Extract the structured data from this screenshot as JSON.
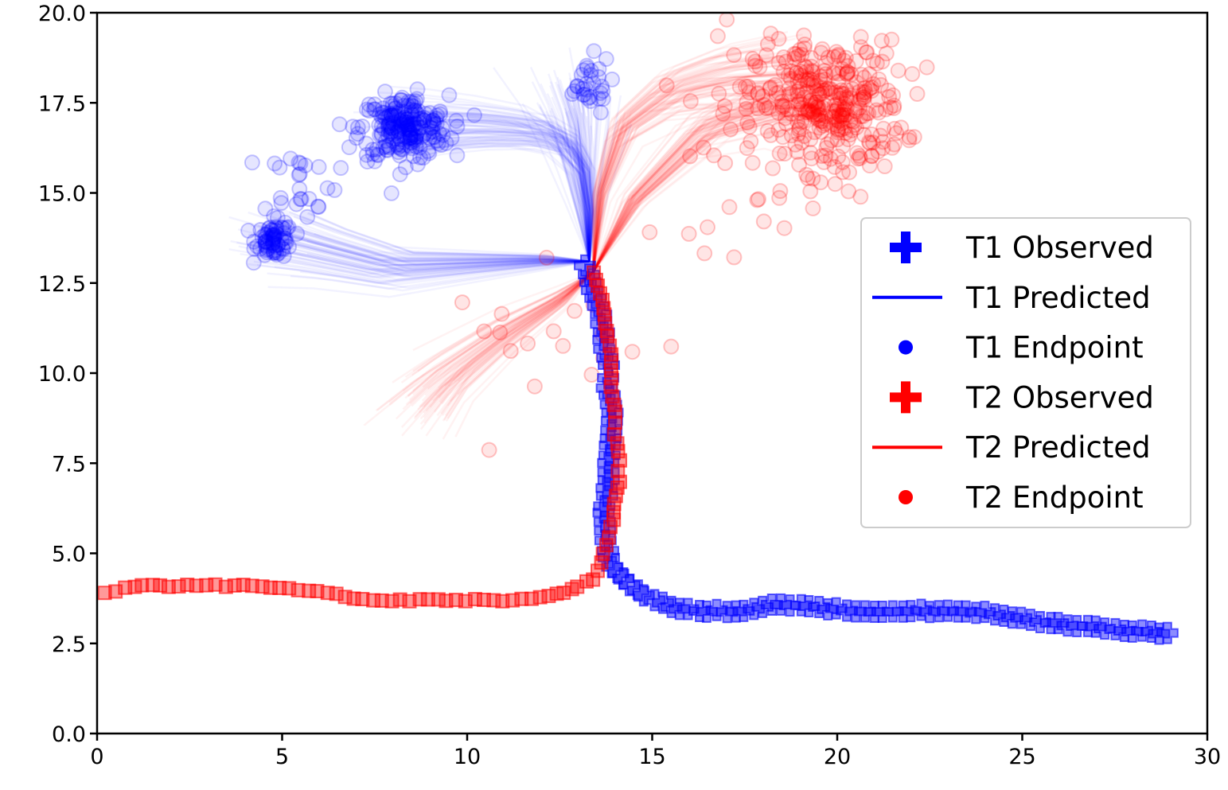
{
  "chart_data": {
    "type": "scatter",
    "title": "",
    "xlabel": "",
    "ylabel": "",
    "xlim": [
      0,
      30
    ],
    "ylim": [
      0,
      20
    ],
    "x_ticks": [
      "0",
      "5",
      "10",
      "15",
      "20",
      "25",
      "30"
    ],
    "y_ticks": [
      "0.0",
      "2.5",
      "5.0",
      "7.5",
      "10.0",
      "12.5",
      "15.0",
      "17.5",
      "20.0"
    ],
    "grid": false,
    "legend_position": "right",
    "colors": {
      "t1": "#0000ff",
      "t2": "#ff0000"
    },
    "series": [
      {
        "name": "T1 Observed",
        "kind": "observed",
        "marker": "plus",
        "x": [
          13.2,
          13.4,
          13.6,
          13.7,
          13.8,
          13.8,
          13.9,
          13.9,
          13.8,
          13.8,
          13.7,
          13.7,
          13.9,
          14.2,
          14.8,
          15.5,
          16.5,
          17.5,
          18.5,
          19.5,
          20.5,
          21.5,
          22.5,
          23.5,
          24.5,
          25.5,
          26.5,
          27.5,
          28.5,
          28.9
        ],
        "y": [
          13.0,
          12.3,
          11.6,
          10.9,
          10.2,
          9.6,
          8.9,
          8.2,
          7.5,
          6.8,
          6.1,
          5.6,
          4.6,
          4.3,
          3.8,
          3.5,
          3.4,
          3.4,
          3.6,
          3.5,
          3.4,
          3.4,
          3.4,
          3.4,
          3.3,
          3.1,
          3.0,
          2.9,
          2.8,
          2.8
        ]
      },
      {
        "name": "T1 Predicted",
        "kind": "predicted",
        "marker": "line",
        "paths": [
          {
            "x": [
              13.3,
              12.0,
              10.0,
              8.0,
              6.0,
              4.8
            ],
            "y": [
              13.1,
              13.1,
              13.0,
              12.9,
              13.4,
              13.7
            ]
          },
          {
            "x": [
              13.3,
              13.3,
              13.1,
              12.6,
              11.8,
              10.5,
              9.3,
              8.3
            ],
            "y": [
              13.1,
              14.5,
              15.7,
              16.4,
              16.7,
              16.8,
              16.8,
              16.7
            ]
          },
          {
            "x": [
              13.3,
              13.2,
              13.1,
              13.0,
              12.8
            ],
            "y": [
              13.1,
              14.5,
              15.8,
              17.0,
              17.9
            ]
          }
        ]
      },
      {
        "name": "T1 Endpoint",
        "kind": "endpoint",
        "marker": "circle",
        "clusters": [
          {
            "cx": 4.8,
            "cy": 13.7,
            "sx": 0.25,
            "sy": 0.25,
            "n": 70
          },
          {
            "cx": 8.3,
            "cy": 16.8,
            "sx": 0.6,
            "sy": 0.45,
            "n": 220
          },
          {
            "cx": 5.5,
            "cy": 15.3,
            "sx": 0.5,
            "sy": 0.5,
            "n": 25
          },
          {
            "cx": 13.2,
            "cy": 18.0,
            "sx": 0.35,
            "sy": 0.4,
            "n": 30
          }
        ]
      },
      {
        "name": "T2 Observed",
        "kind": "observed",
        "marker": "square",
        "x": [
          0.2,
          1.0,
          2.2,
          3.2,
          4.2,
          5.2,
          6.2,
          7.2,
          8.2,
          9.2,
          10.2,
          11.2,
          12.0,
          12.6,
          13.0,
          13.4,
          13.7,
          13.9,
          14.0,
          14.1,
          14.1,
          14.0,
          14.0,
          13.9,
          13.9,
          13.8,
          13.7,
          13.6,
          13.4
        ],
        "y": [
          3.9,
          4.1,
          4.1,
          4.1,
          4.1,
          4.0,
          3.9,
          3.7,
          3.7,
          3.7,
          3.7,
          3.7,
          3.8,
          3.9,
          4.1,
          4.3,
          5.0,
          5.7,
          6.4,
          7.0,
          7.6,
          8.3,
          8.9,
          9.6,
          10.3,
          11.0,
          11.6,
          12.2,
          12.8
        ]
      },
      {
        "name": "T2 Predicted",
        "kind": "predicted",
        "marker": "line",
        "paths": [
          {
            "x": [
              13.4,
              14.5,
              16.5,
              18.5,
              19.8
            ],
            "y": [
              12.8,
              14.8,
              16.8,
              17.5,
              17.6
            ]
          },
          {
            "x": [
              13.4,
              13.6,
              14.2,
              15.5,
              17.0,
              18.5
            ],
            "y": [
              12.8,
              15.0,
              16.8,
              17.8,
              18.2,
              18.3
            ]
          },
          {
            "x": [
              13.4,
              12.5,
              11.0,
              9.5,
              8.8
            ],
            "y": [
              12.8,
              12.0,
              11.0,
              9.8,
              9.0
            ]
          }
        ]
      },
      {
        "name": "T2 Endpoint",
        "kind": "endpoint",
        "marker": "circle",
        "clusters": [
          {
            "cx": 19.8,
            "cy": 17.4,
            "sx": 1.0,
            "sy": 0.9,
            "n": 320
          },
          {
            "cx": 17.5,
            "cy": 16.5,
            "sx": 1.2,
            "sy": 1.5,
            "n": 40
          },
          {
            "cx": 12.5,
            "cy": 10.8,
            "sx": 1.5,
            "sy": 1.0,
            "n": 18
          }
        ]
      }
    ]
  },
  "legend": [
    {
      "label": "T1 Observed",
      "icon": "plus-icon",
      "color": "#0000ff"
    },
    {
      "label": "T1 Predicted",
      "icon": "line-icon",
      "color": "#0000ff"
    },
    {
      "label": "T1 Endpoint",
      "icon": "dot-icon",
      "color": "#0000ff"
    },
    {
      "label": "T2 Observed",
      "icon": "plus-icon",
      "color": "#ff0000"
    },
    {
      "label": "T2 Predicted",
      "icon": "line-icon",
      "color": "#ff0000"
    },
    {
      "label": "T2 Endpoint",
      "icon": "dot-icon",
      "color": "#ff0000"
    }
  ]
}
